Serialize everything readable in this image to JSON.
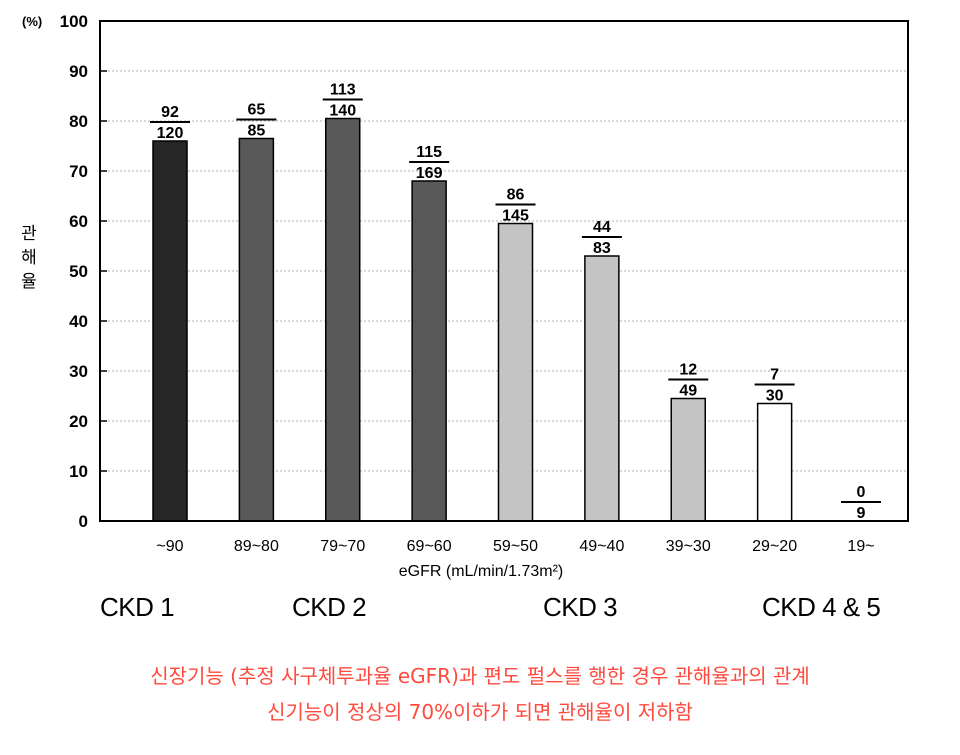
{
  "chart_data": {
    "type": "bar",
    "unit_label": "(%)",
    "ylabel": "관해율",
    "xlabel": "eGFR (mL/min/1.73m²)",
    "ylim": [
      0,
      100
    ],
    "yticks": [
      0,
      10,
      20,
      30,
      40,
      50,
      60,
      70,
      80,
      90,
      100
    ],
    "grid": true,
    "categories": [
      "~90",
      "89~80",
      "79~70",
      "69~60",
      "59~50",
      "49~40",
      "39~30",
      "29~20",
      "19~"
    ],
    "values": [
      76,
      76.5,
      80.5,
      68,
      59.5,
      53,
      24.5,
      23.5,
      0
    ],
    "fractions": [
      {
        "num": "92",
        "den": "120"
      },
      {
        "num": "65",
        "den": "85"
      },
      {
        "num": "113",
        "den": "140"
      },
      {
        "num": "115",
        "den": "169"
      },
      {
        "num": "86",
        "den": "145"
      },
      {
        "num": "44",
        "den": "83"
      },
      {
        "num": "12",
        "den": "49"
      },
      {
        "num": "7",
        "den": "30"
      },
      {
        "num": "0",
        "den": "9"
      }
    ],
    "bar_colors": [
      "#262626",
      "#595959",
      "#595959",
      "#595959",
      "#c4c4c4",
      "#c4c4c4",
      "#c4c4c4",
      "#ffffff",
      "#ffffff"
    ],
    "groups": [
      {
        "label": "CKD 1"
      },
      {
        "label": "CKD 2"
      },
      {
        "label": "CKD 3"
      },
      {
        "label": "CKD 4 & 5"
      }
    ]
  },
  "captions": {
    "line1": "신장기능 (추정 사구체투과율 eGFR)과 편도 펄스를 행한 경우 관해율과의 관계",
    "line2": "신기능이 정상의 70%이하가 되면 관해율이 저하함"
  },
  "colors": {
    "caption": "#ff4a3d",
    "grid": "#b0b0b0",
    "axis": "#000000"
  }
}
